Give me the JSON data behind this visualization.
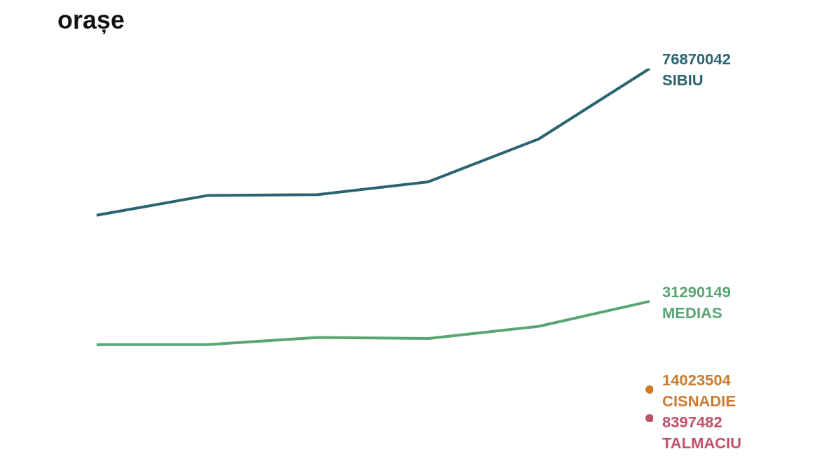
{
  "chart_data": {
    "type": "line",
    "title": "orașe",
    "categories": [
      null,
      null,
      null,
      null,
      null,
      null
    ],
    "series": [
      {
        "name": "SIBIU",
        "color": "#2a6471",
        "values": [
          48150000,
          52000000,
          52200000,
          54700000,
          63100000,
          76870042
        ],
        "value_labels": [
          null,
          null,
          null,
          null,
          null,
          "76870042"
        ]
      },
      {
        "name": "MEDIAS",
        "color": "#5aa574",
        "values": [
          22800000,
          22800000,
          24200000,
          24000000,
          26400000,
          31290149
        ],
        "value_labels": [
          null,
          null,
          null,
          null,
          null,
          "31290149"
        ]
      },
      {
        "name": "CISNADIE",
        "color": "#cc7a2e",
        "marker": "circle",
        "values": [
          null,
          null,
          null,
          null,
          null,
          14023504
        ],
        "value_labels": [
          null,
          null,
          null,
          null,
          null,
          "14023504"
        ]
      },
      {
        "name": "TALMACIU",
        "color": "#c0506a",
        "marker": "circle",
        "values": [
          null,
          null,
          null,
          null,
          null,
          8397482
        ],
        "value_labels": [
          null,
          null,
          null,
          null,
          null,
          "8397482"
        ]
      }
    ],
    "tick_labels": false,
    "grid": false,
    "legend": false,
    "marker": "none",
    "line_style": "solid"
  }
}
